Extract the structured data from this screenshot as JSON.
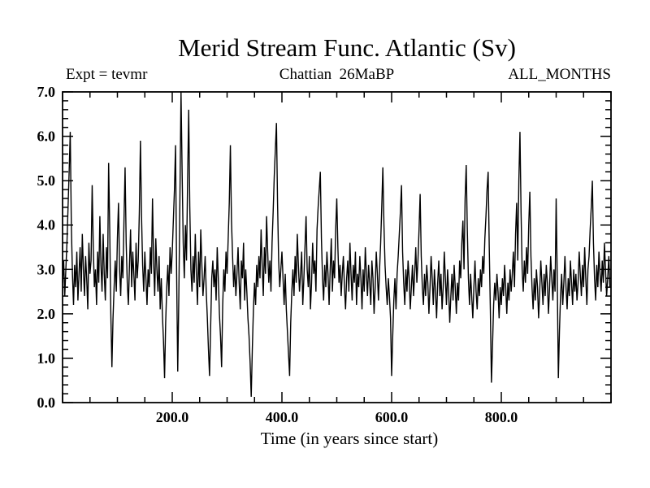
{
  "chart_data": {
    "type": "line",
    "title": "Merid Stream Func. Atlantic (Sv)",
    "annotations": {
      "left": "Expt = tevmr",
      "center": "Chattian  26MaBP",
      "right": "ALL_MONTHS"
    },
    "xlabel": "Time (in years since start)",
    "ylabel": "",
    "grid": false,
    "legend": null,
    "frame_color": "#000000",
    "line_color": "#000000",
    "background_color": "#ffffff",
    "x_axis": {
      "min": 0,
      "max": 1000,
      "major_interval": 200,
      "minor_interval": 50,
      "labeled_ticks": [
        {
          "value": 200,
          "label": "200.0"
        },
        {
          "value": 400,
          "label": "400.0"
        },
        {
          "value": 600,
          "label": "600.0"
        },
        {
          "value": 800,
          "label": "800.0"
        }
      ]
    },
    "y_axis": {
      "min": 0,
      "max": 7,
      "major_interval": 1,
      "minor_interval": 0.2,
      "labeled_ticks": [
        {
          "value": 0,
          "label": "0.0"
        },
        {
          "value": 1,
          "label": "1.0"
        },
        {
          "value": 2,
          "label": "2.0"
        },
        {
          "value": 3,
          "label": "3.0"
        },
        {
          "value": 4,
          "label": "4.0"
        },
        {
          "value": 5,
          "label": "5.0"
        },
        {
          "value": 6,
          "label": "6.0"
        },
        {
          "value": 7,
          "label": "7.0"
        }
      ]
    },
    "series": [
      {
        "name": "Merid Stream Func. Atlantic (Sv)",
        "x_start": 0,
        "x_step": 2,
        "values": [
          2.7,
          3.2,
          2.4,
          3.0,
          3.6,
          4.4,
          5.2,
          6.1,
          4.0,
          2.9,
          2.2,
          3.1,
          2.6,
          3.4,
          2.3,
          2.9,
          3.5,
          2.5,
          3.8,
          3.0,
          2.4,
          3.3,
          2.8,
          2.1,
          3.6,
          2.9,
          3.2,
          4.9,
          3.5,
          2.6,
          3.0,
          2.2,
          3.4,
          2.7,
          4.2,
          3.1,
          2.5,
          3.8,
          2.9,
          2.3,
          3.5,
          2.8,
          5.4,
          3.9,
          2.0,
          0.8,
          1.9,
          2.6,
          3.2,
          2.5,
          3.7,
          4.5,
          3.0,
          2.4,
          3.3,
          2.8,
          4.1,
          5.3,
          3.6,
          2.7,
          2.2,
          3.1,
          3.9,
          2.6,
          3.4,
          2.9,
          2.3,
          3.6,
          2.8,
          3.2,
          4.3,
          5.9,
          4.2,
          3.1,
          2.5,
          3.4,
          2.8,
          2.2,
          3.0,
          2.6,
          3.5,
          2.9,
          4.6,
          3.2,
          2.4,
          3.7,
          3.0,
          2.5,
          3.3,
          2.1,
          2.8,
          2.0,
          1.4,
          0.55,
          1.8,
          2.6,
          3.1,
          2.4,
          3.5,
          2.9,
          3.4,
          4.1,
          4.8,
          5.8,
          2.9,
          0.7,
          2.4,
          4.6,
          7.0,
          5.2,
          3.6,
          2.8,
          4.0,
          3.2,
          5.0,
          6.6,
          4.4,
          3.0,
          2.5,
          3.3,
          2.7,
          3.8,
          2.9,
          2.2,
          3.4,
          2.6,
          3.9,
          3.1,
          2.4,
          2.8,
          3.3,
          2.5,
          1.9,
          1.2,
          0.6,
          1.7,
          2.8,
          3.2,
          2.6,
          3.0,
          2.3,
          3.5,
          2.8,
          2.0,
          1.5,
          0.8,
          2.2,
          3.0,
          2.5,
          3.4,
          2.9,
          3.7,
          4.5,
          5.8,
          4.1,
          3.3,
          2.6,
          3.1,
          2.4,
          2.9,
          3.5,
          2.7,
          2.1,
          3.2,
          2.8,
          3.6,
          2.3,
          3.0,
          2.5,
          1.9,
          1.5,
          0.9,
          0.13,
          1.2,
          2.1,
          2.7,
          2.2,
          3.1,
          2.6,
          3.3,
          2.8,
          3.9,
          3.1,
          2.4,
          3.5,
          2.9,
          4.2,
          3.4,
          2.7,
          3.2,
          2.5,
          3.6,
          4.3,
          5.1,
          5.7,
          6.3,
          4.5,
          3.2,
          2.6,
          3.0,
          3.4,
          2.8,
          2.2,
          2.9,
          2.1,
          1.6,
          1.1,
          0.6,
          1.8,
          2.5,
          3.0,
          2.4,
          3.3,
          2.7,
          3.8,
          3.1,
          2.5,
          2.9,
          3.4,
          2.2,
          2.8,
          3.5,
          4.2,
          3.0,
          2.6,
          3.3,
          2.1,
          2.7,
          3.6,
          2.9,
          3.2,
          2.5,
          3.9,
          4.4,
          4.8,
          5.2,
          3.7,
          2.8,
          2.3,
          3.1,
          2.6,
          3.4,
          2.9,
          2.2,
          3.0,
          3.7,
          2.5,
          3.2,
          2.8,
          3.9,
          4.6,
          3.5,
          2.7,
          3.1,
          2.4,
          2.9,
          3.3,
          2.6,
          2.1,
          2.8,
          3.2,
          2.5,
          3.6,
          2.9,
          2.3,
          3.1,
          2.7,
          3.4,
          2.2,
          2.9,
          2.6,
          3.3,
          2.8,
          2.1,
          3.0,
          2.5,
          3.5,
          2.9,
          2.4,
          3.1,
          2.7,
          2.2,
          3.2,
          2.8,
          2.0,
          2.6,
          3.4,
          2.9,
          2.3,
          3.0,
          3.6,
          4.4,
          5.3,
          4.0,
          3.1,
          2.6,
          2.2,
          2.8,
          2.4,
          1.9,
          0.6,
          1.5,
          2.3,
          2.8,
          2.1,
          2.9,
          3.3,
          3.8,
          4.3,
          4.9,
          3.4,
          2.7,
          2.2,
          3.0,
          2.5,
          3.2,
          2.8,
          2.1,
          2.6,
          3.1,
          2.4,
          2.9,
          3.5,
          2.7,
          3.2,
          3.9,
          4.7,
          3.3,
          2.6,
          2.2,
          2.9,
          2.4,
          3.1,
          2.7,
          2.0,
          2.6,
          3.3,
          2.8,
          2.2,
          3.0,
          2.5,
          1.9,
          2.7,
          3.2,
          2.4,
          2.9,
          2.1,
          2.6,
          3.4,
          2.8,
          2.2,
          3.0,
          2.5,
          1.8,
          2.4,
          2.9,
          2.3,
          3.1,
          2.6,
          2.0,
          2.7,
          2.3,
          3.2,
          2.8,
          3.6,
          4.1,
          3.0,
          4.6,
          5.35,
          3.9,
          2.8,
          2.2,
          2.9,
          2.4,
          1.9,
          2.6,
          3.2,
          2.5,
          2.1,
          2.8,
          2.4,
          3.0,
          2.6,
          3.3,
          2.9,
          3.7,
          4.2,
          4.8,
          5.2,
          3.5,
          2.1,
          0.45,
          1.3,
          2.2,
          2.7,
          2.3,
          2.9,
          2.5,
          1.9,
          2.6,
          2.2,
          2.8,
          2.4,
          3.1,
          2.6,
          2.0,
          2.7,
          2.3,
          3.0,
          2.5,
          2.9,
          3.4,
          2.6,
          3.8,
          4.5,
          3.2,
          5.0,
          6.1,
          4.3,
          3.0,
          2.5,
          3.2,
          2.7,
          3.5,
          2.9,
          4.0,
          4.75,
          3.3,
          2.6,
          2.1,
          2.8,
          2.3,
          3.0,
          2.6,
          1.9,
          2.5,
          3.2,
          2.7,
          2.2,
          2.9,
          2.4,
          3.1,
          2.7,
          2.0,
          2.6,
          3.3,
          2.8,
          2.3,
          3.0,
          2.5,
          4.6,
          2.8,
          0.55,
          1.6,
          2.4,
          2.9,
          2.2,
          2.7,
          3.3,
          2.6,
          2.1,
          2.8,
          2.4,
          3.2,
          2.7,
          2.2,
          3.0,
          2.5,
          2.9,
          2.3,
          2.7,
          3.4,
          2.9,
          2.4,
          3.1,
          2.6,
          3.5,
          2.8,
          2.2,
          3.0,
          3.3,
          3.9,
          4.4,
          5.0,
          3.6,
          2.8,
          2.3,
          3.1,
          2.6,
          3.4,
          2.9,
          2.5,
          3.2,
          2.7,
          3.6,
          3.0,
          2.4,
          2.8,
          3.3,
          2.6
        ]
      }
    ]
  }
}
